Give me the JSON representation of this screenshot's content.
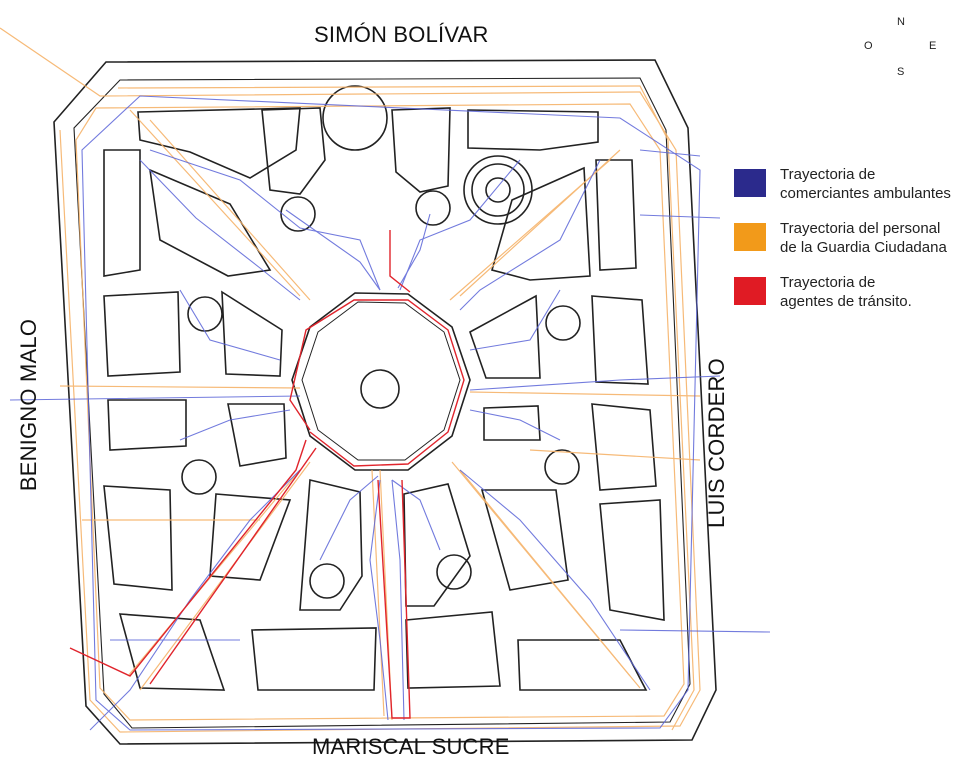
{
  "streets": {
    "north": "SIMÓN BOLÍVAR",
    "south": "MARISCAL SUCRE",
    "west": "BENIGNO MALO",
    "east": "LUIS CORDERO"
  },
  "compass": {
    "n": "N",
    "s": "S",
    "e": "E",
    "w": "O"
  },
  "legend": [
    {
      "label_line1": "Trayectoria de",
      "label_line2": "comerciantes ambulantes",
      "color": "#2b2a8c"
    },
    {
      "label_line1": "Trayectoria del personal",
      "label_line2": "de la Guardia Ciudadana",
      "color": "#f29a1a"
    },
    {
      "label_line1": "Trayectoria de",
      "label_line2": "agentes de tránsito.",
      "color": "#e01b24"
    }
  ],
  "colors": {
    "outline": "#222222",
    "vendors": "#5a64d8",
    "guard": "#f6b36a",
    "transit": "#e0242c"
  }
}
